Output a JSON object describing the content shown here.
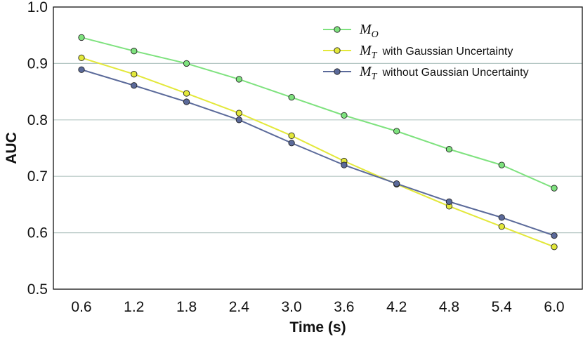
{
  "chart_data": {
    "type": "line",
    "title": "",
    "xlabel": "Time (s)",
    "ylabel": "AUC",
    "categories": [
      "0.6",
      "1.2",
      "1.8",
      "2.4",
      "3.0",
      "3.6",
      "4.2",
      "4.8",
      "5.4",
      "6.0"
    ],
    "ylim": [
      0.5,
      1.0
    ],
    "yticks": [
      "0.5",
      "0.6",
      "0.7",
      "0.8",
      "0.9",
      "1.0"
    ],
    "grid": "horizontal",
    "legend_position": "top-right",
    "series": [
      {
        "name": "M_O",
        "legend_symbol": "M",
        "legend_subscript": "O",
        "legend_suffix": "",
        "color": "#7ee27e",
        "values": [
          0.946,
          0.922,
          0.9,
          0.872,
          0.84,
          0.808,
          0.78,
          0.748,
          0.72,
          0.679
        ]
      },
      {
        "name": "M_T with Gaussian Uncertainty",
        "legend_symbol": "M",
        "legend_subscript": "T",
        "legend_suffix": "with Gaussian Uncertainty",
        "color": "#e3e83a",
        "values": [
          0.91,
          0.881,
          0.847,
          0.812,
          0.772,
          0.727,
          0.686,
          0.647,
          0.611,
          0.575
        ]
      },
      {
        "name": "M_T without Gaussian Uncertainty",
        "legend_symbol": "M",
        "legend_subscript": "T",
        "legend_suffix": "without Gaussian Uncertainty",
        "color": "#5b6a9a",
        "values": [
          0.889,
          0.861,
          0.832,
          0.8,
          0.759,
          0.72,
          0.687,
          0.655,
          0.627,
          0.595
        ]
      }
    ]
  }
}
